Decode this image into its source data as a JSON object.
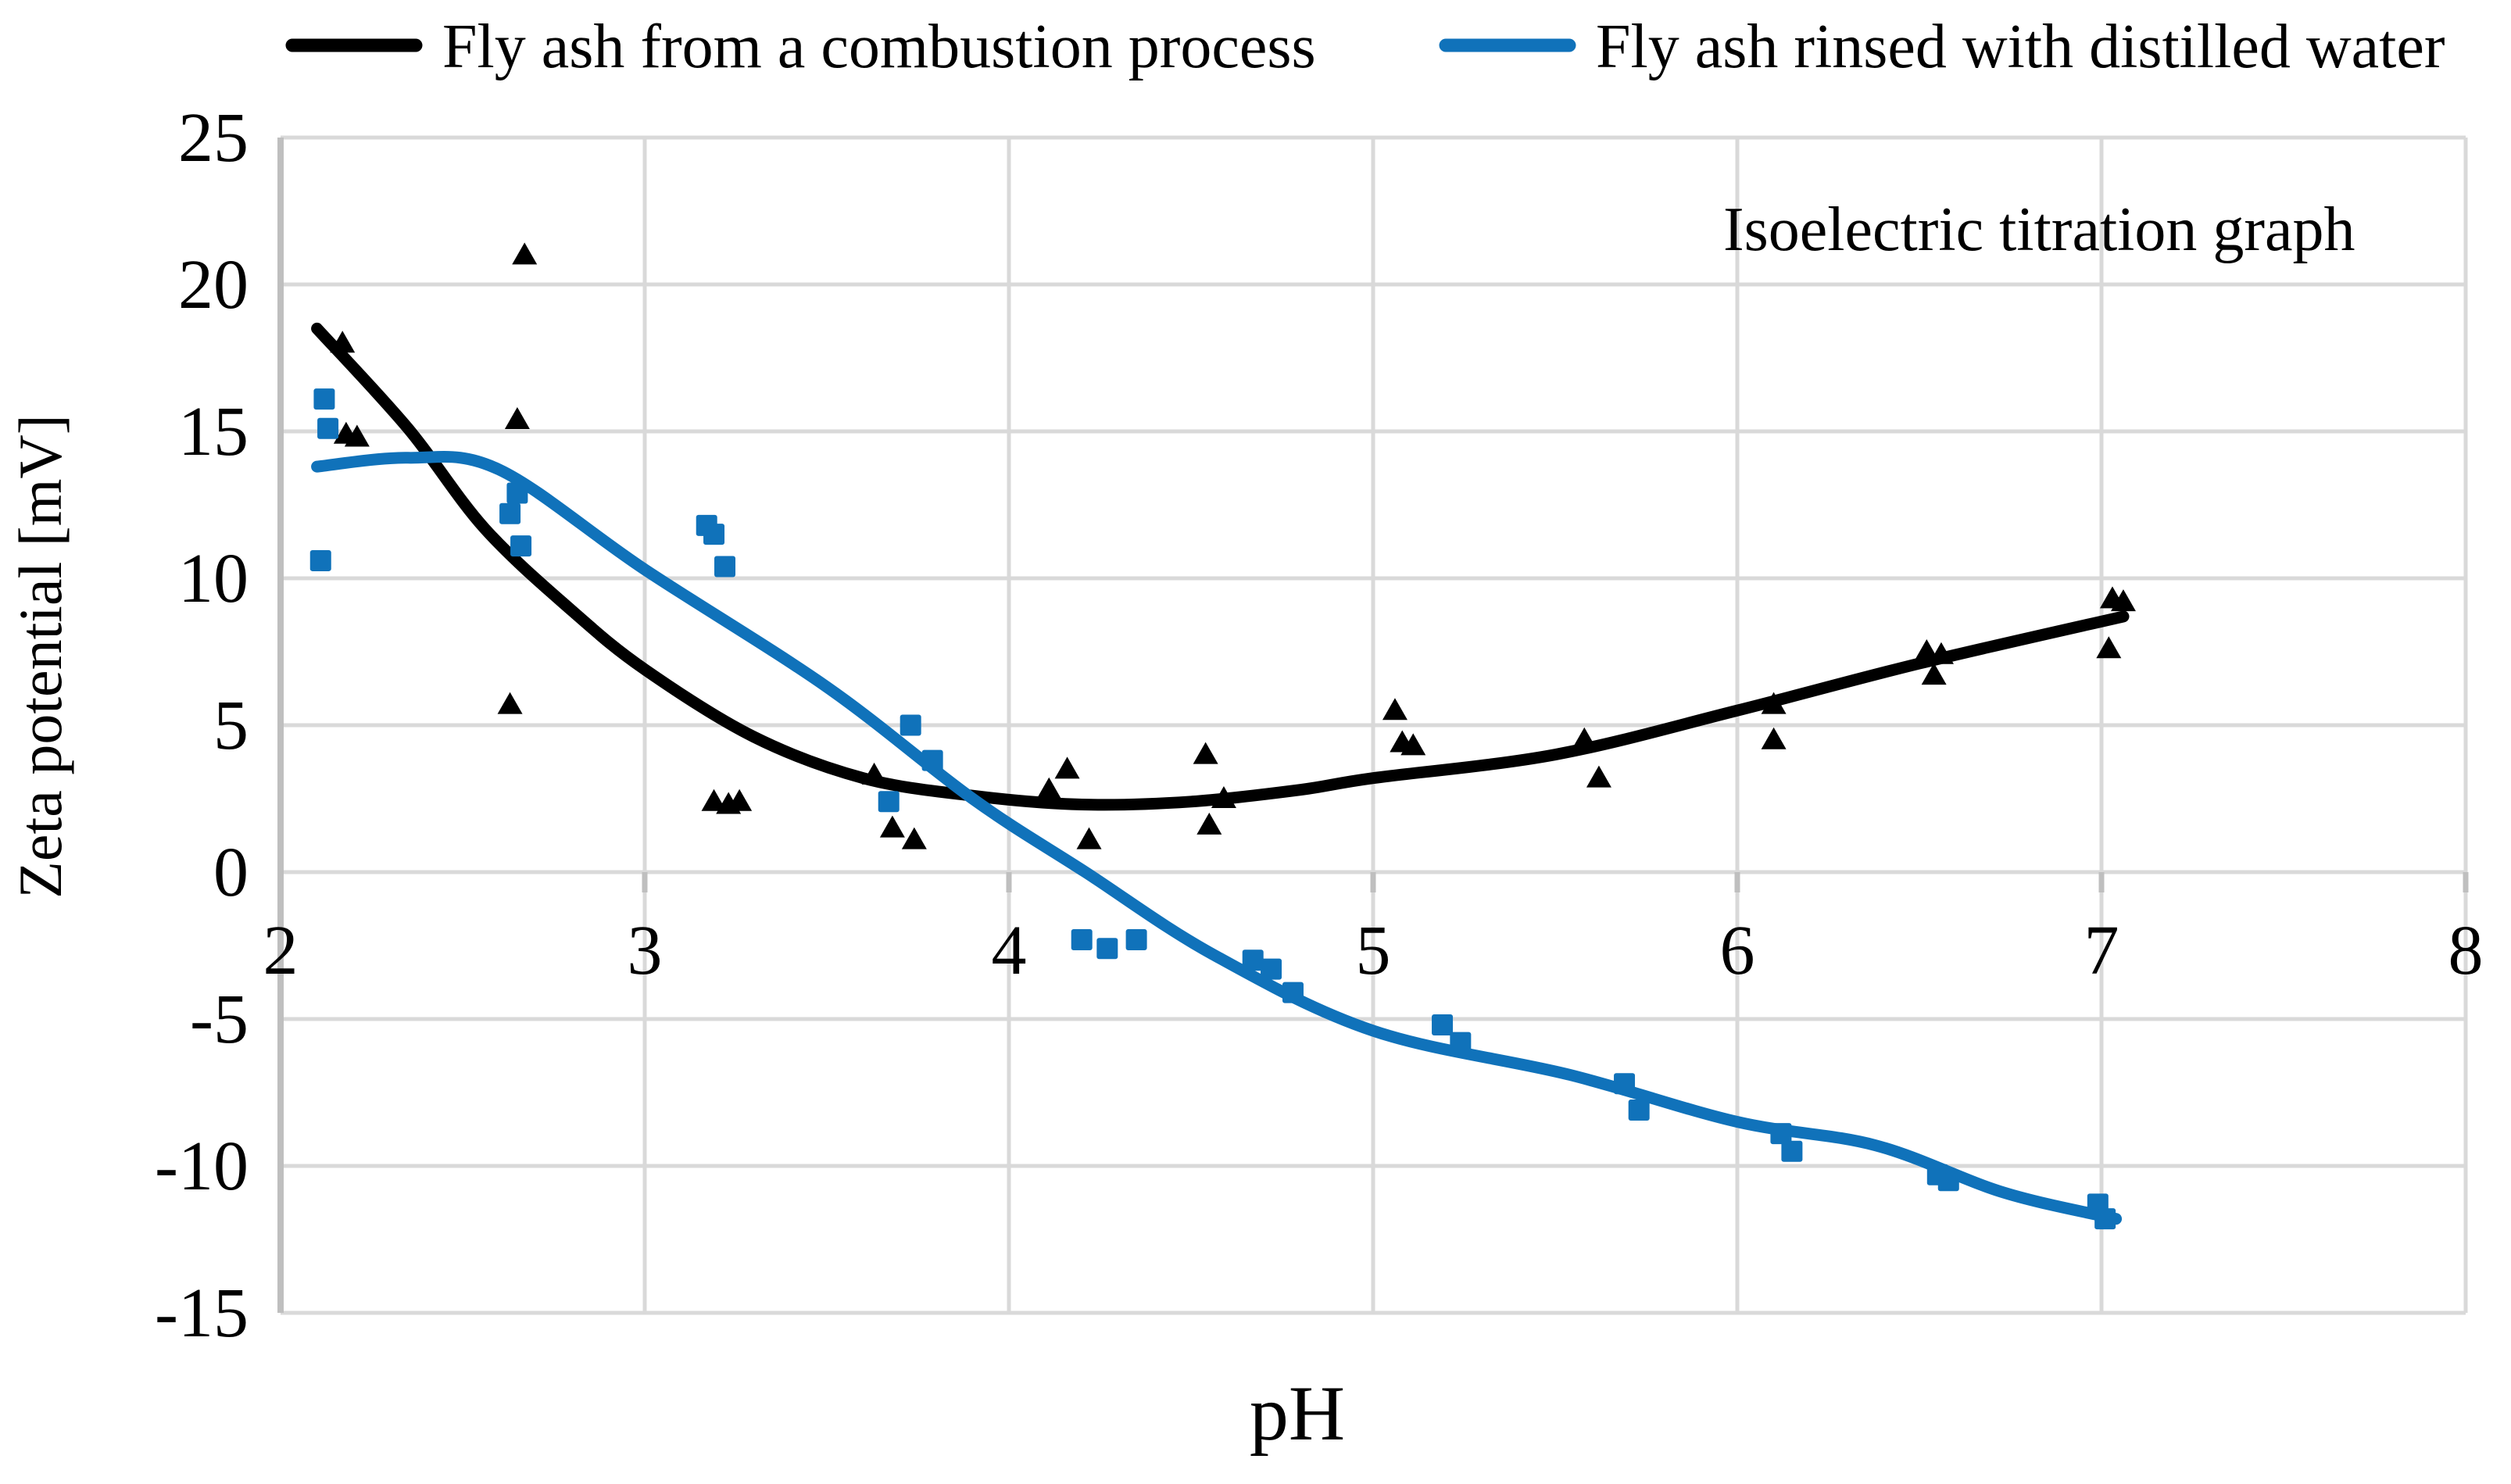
{
  "title": "Isoelectric titration graph",
  "legend": {
    "items": [
      {
        "label": "Fly ash from a combustion process",
        "color": "#000000",
        "marker": "triangle"
      },
      {
        "label": "Fly ash rinsed with distilled water",
        "color": "#1072BA",
        "marker": "square"
      }
    ]
  },
  "x_axis": {
    "label": "pH",
    "min": 2,
    "max": 8,
    "ticks": [
      2,
      3,
      4,
      5,
      6,
      7,
      8
    ]
  },
  "y_axis": {
    "label": "Zeta potential [mV]",
    "min": -15,
    "max": 25,
    "ticks": [
      25,
      20,
      15,
      10,
      5,
      0,
      -5,
      -10,
      -15
    ]
  },
  "colors": {
    "gridline": "#D9D9D9",
    "axis_line": "#BFBFBF",
    "tick_mark": "#BFBFBF",
    "series_combustion": "#000000",
    "series_rinsed": "#1072BA"
  },
  "chart_data": {
    "type": "scatter",
    "title": "Isoelectric titration graph",
    "xlabel": "pH",
    "ylabel": "Zeta potential [mV]",
    "xlim": [
      2,
      8
    ],
    "ylim": [
      -15,
      25
    ],
    "grid": true,
    "legend_position": "top",
    "series": [
      {
        "name": "Fly ash from a combustion process",
        "marker": "triangle",
        "color": "#000000",
        "points": [
          [
            2.17,
            18.0
          ],
          [
            2.18,
            14.9
          ],
          [
            2.21,
            14.8
          ],
          [
            2.67,
            21.0
          ],
          [
            2.65,
            15.4
          ],
          [
            2.63,
            5.7
          ],
          [
            3.19,
            2.4
          ],
          [
            3.23,
            2.3
          ],
          [
            3.26,
            2.4
          ],
          [
            3.63,
            3.3
          ],
          [
            3.68,
            1.5
          ],
          [
            3.74,
            1.1
          ],
          [
            4.11,
            2.8
          ],
          [
            4.16,
            3.5
          ],
          [
            4.22,
            1.1
          ],
          [
            4.54,
            4.0
          ],
          [
            4.59,
            2.5
          ],
          [
            4.55,
            1.6
          ],
          [
            5.06,
            5.5
          ],
          [
            5.08,
            4.4
          ],
          [
            5.11,
            4.3
          ],
          [
            5.58,
            4.5
          ],
          [
            5.62,
            3.2
          ],
          [
            6.1,
            5.7
          ],
          [
            6.1,
            4.5
          ],
          [
            6.52,
            7.5
          ],
          [
            6.56,
            7.4
          ],
          [
            6.54,
            6.7
          ],
          [
            7.03,
            9.3
          ],
          [
            7.06,
            9.2
          ],
          [
            7.02,
            7.6
          ]
        ],
        "trend": [
          [
            2.1,
            18.5
          ],
          [
            2.35,
            15.1
          ],
          [
            2.56,
            11.7
          ],
          [
            2.8,
            8.9
          ],
          [
            3.0,
            6.9
          ],
          [
            3.3,
            4.6
          ],
          [
            3.6,
            3.2
          ],
          [
            3.9,
            2.6
          ],
          [
            4.2,
            2.3
          ],
          [
            4.5,
            2.4
          ],
          [
            4.8,
            2.8
          ],
          [
            5.0,
            3.2
          ],
          [
            5.5,
            4.0
          ],
          [
            6.0,
            5.5
          ],
          [
            6.5,
            7.1
          ],
          [
            7.06,
            8.7
          ]
        ]
      },
      {
        "name": "Fly ash rinsed with distilled water",
        "marker": "square",
        "color": "#1072BA",
        "points": [
          [
            2.12,
            16.1
          ],
          [
            2.13,
            15.1
          ],
          [
            2.11,
            10.6
          ],
          [
            2.65,
            12.9
          ],
          [
            2.63,
            12.2
          ],
          [
            2.66,
            11.1
          ],
          [
            3.17,
            11.8
          ],
          [
            3.19,
            11.5
          ],
          [
            3.22,
            10.4
          ],
          [
            3.67,
            2.4
          ],
          [
            3.73,
            5.0
          ],
          [
            3.79,
            3.8
          ],
          [
            4.2,
            -2.3
          ],
          [
            4.27,
            -2.6
          ],
          [
            4.35,
            -2.3
          ],
          [
            4.67,
            -3.0
          ],
          [
            4.72,
            -3.3
          ],
          [
            4.78,
            -4.1
          ],
          [
            5.19,
            -5.2
          ],
          [
            5.24,
            -5.8
          ],
          [
            5.69,
            -7.2
          ],
          [
            5.73,
            -8.1
          ],
          [
            6.12,
            -8.9
          ],
          [
            6.15,
            -9.5
          ],
          [
            6.55,
            -10.3
          ],
          [
            6.58,
            -10.5
          ],
          [
            6.99,
            -11.3
          ],
          [
            7.01,
            -11.8
          ]
        ],
        "trend": [
          [
            2.1,
            13.8
          ],
          [
            2.35,
            14.1
          ],
          [
            2.6,
            13.7
          ],
          [
            3.0,
            10.3
          ],
          [
            3.5,
            6.3
          ],
          [
            3.9,
            2.5
          ],
          [
            4.21,
            0.0
          ],
          [
            4.56,
            -2.8
          ],
          [
            5.0,
            -5.4
          ],
          [
            5.54,
            -6.9
          ],
          [
            6.0,
            -8.5
          ],
          [
            6.38,
            -9.3
          ],
          [
            6.73,
            -10.9
          ],
          [
            7.04,
            -11.8
          ]
        ]
      }
    ]
  }
}
